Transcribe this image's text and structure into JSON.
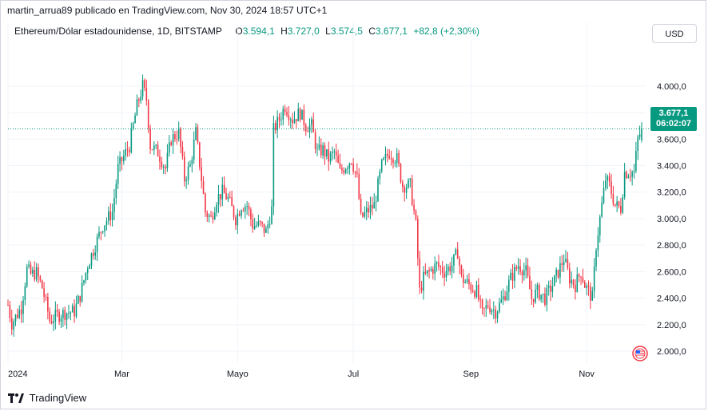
{
  "caption": "martin_arrua89 publicado en TradingView.com, Nov 30, 2024 18:57 UTC+1",
  "legend": {
    "symbol": "Ethereum/Dólar estadounidense, 1D, BITSTAMP",
    "o_label": "O",
    "o_value": "3.594,1",
    "h_label": "H",
    "h_value": "3.727,0",
    "l_label": "L",
    "l_value": "3.574,5",
    "c_label": "C",
    "c_value": "3.677,1",
    "change": "+82,8 (+2,30%)"
  },
  "currency_button": "USD",
  "price_tag": {
    "price": "3.677,1",
    "countdown": "06:02:07"
  },
  "brand": "TradingView",
  "colors": {
    "up": "#089981",
    "down": "#f23645",
    "grid": "#f0f3fa",
    "text": "#131722"
  },
  "icons": {
    "logo": "tradingview-logo-icon",
    "flag": "us-flag-icon"
  },
  "chart_data": {
    "type": "candlestick",
    "title": "Ethereum/Dólar estadounidense, 1D, BITSTAMP",
    "y_ticks": [
      "4.000,0",
      "3.800,0",
      "3.600,0",
      "3.400,0",
      "3.200,0",
      "3.000,0",
      "2.800,0",
      "2.600,0",
      "2.400,0",
      "2.200,0",
      "2.000,0"
    ],
    "y_tick_values": [
      4000,
      3800,
      3600,
      3400,
      3200,
      3000,
      2800,
      2600,
      2400,
      2200,
      2000
    ],
    "ylim": [
      1910,
      4300
    ],
    "x_ticks": [
      "2024",
      "Mar",
      "Mayo",
      "Jul",
      "Sep",
      "Nov"
    ],
    "x_tick_dates": [
      "2024-01-01",
      "2024-03-01",
      "2024-05-01",
      "2024-07-01",
      "2024-09-01",
      "2024-11-01"
    ],
    "xlim": [
      "2024-01-01",
      "2024-11-30"
    ],
    "last_price": 3677.1,
    "last_candle": {
      "date": "2024-11-30",
      "open": 3594.1,
      "high": 3727.0,
      "low": 3574.5,
      "close": 3677.1
    },
    "close_path": [
      [
        "2024-01-01",
        2350
      ],
      [
        "2024-01-03",
        2210
      ],
      [
        "2024-01-08",
        2330
      ],
      [
        "2024-01-11",
        2620
      ],
      [
        "2024-01-13",
        2580
      ],
      [
        "2024-01-16",
        2590
      ],
      [
        "2024-01-19",
        2480
      ],
      [
        "2024-01-22",
        2300
      ],
      [
        "2024-01-23",
        2230
      ],
      [
        "2024-01-27",
        2270
      ],
      [
        "2024-01-31",
        2290
      ],
      [
        "2024-02-05",
        2300
      ],
      [
        "2024-02-08",
        2420
      ],
      [
        "2024-02-12",
        2650
      ],
      [
        "2024-02-16",
        2800
      ],
      [
        "2024-02-20",
        2950
      ],
      [
        "2024-02-25",
        3050
      ],
      [
        "2024-02-28",
        3380
      ],
      [
        "2024-03-01",
        3440
      ],
      [
        "2024-03-05",
        3550
      ],
      [
        "2024-03-09",
        3850
      ],
      [
        "2024-03-12",
        4000
      ],
      [
        "2024-03-14",
        3900
      ],
      [
        "2024-03-16",
        3550
      ],
      [
        "2024-03-20",
        3500
      ],
      [
        "2024-03-24",
        3380
      ],
      [
        "2024-03-27",
        3600
      ],
      [
        "2024-03-31",
        3650
      ],
      [
        "2024-04-03",
        3300
      ],
      [
        "2024-04-06",
        3400
      ],
      [
        "2024-04-09",
        3650
      ],
      [
        "2024-04-12",
        3300
      ],
      [
        "2024-04-14",
        3050
      ],
      [
        "2024-04-17",
        3000
      ],
      [
        "2024-04-20",
        3150
      ],
      [
        "2024-04-23",
        3200
      ],
      [
        "2024-04-26",
        3150
      ],
      [
        "2024-04-30",
        3000
      ],
      [
        "2024-05-03",
        3100
      ],
      [
        "2024-05-06",
        3100
      ],
      [
        "2024-05-09",
        2950
      ],
      [
        "2024-05-13",
        2950
      ],
      [
        "2024-05-16",
        2900
      ],
      [
        "2024-05-19",
        3070
      ],
      [
        "2024-05-20",
        3670
      ],
      [
        "2024-05-23",
        3750
      ],
      [
        "2024-05-26",
        3850
      ],
      [
        "2024-05-30",
        3750
      ],
      [
        "2024-06-03",
        3800
      ],
      [
        "2024-06-06",
        3700
      ],
      [
        "2024-06-09",
        3700
      ],
      [
        "2024-06-12",
        3500
      ],
      [
        "2024-06-15",
        3520
      ],
      [
        "2024-06-18",
        3450
      ],
      [
        "2024-06-21",
        3500
      ],
      [
        "2024-06-24",
        3350
      ],
      [
        "2024-06-27",
        3400
      ],
      [
        "2024-06-30",
        3450
      ],
      [
        "2024-07-03",
        3300
      ],
      [
        "2024-07-05",
        3000
      ],
      [
        "2024-07-08",
        3050
      ],
      [
        "2024-07-12",
        3100
      ],
      [
        "2024-07-16",
        3400
      ],
      [
        "2024-07-20",
        3500
      ],
      [
        "2024-07-24",
        3450
      ],
      [
        "2024-07-27",
        3250
      ],
      [
        "2024-07-31",
        3250
      ],
      [
        "2024-08-03",
        2950
      ],
      [
        "2024-08-05",
        2450
      ],
      [
        "2024-08-07",
        2550
      ],
      [
        "2024-08-10",
        2600
      ],
      [
        "2024-08-14",
        2650
      ],
      [
        "2024-08-18",
        2600
      ],
      [
        "2024-08-22",
        2650
      ],
      [
        "2024-08-25",
        2750
      ],
      [
        "2024-08-27",
        2550
      ],
      [
        "2024-08-31",
        2500
      ],
      [
        "2024-09-04",
        2450
      ],
      [
        "2024-09-07",
        2280
      ],
      [
        "2024-09-10",
        2350
      ],
      [
        "2024-09-14",
        2300
      ],
      [
        "2024-09-18",
        2400
      ],
      [
        "2024-09-22",
        2550
      ],
      [
        "2024-09-26",
        2650
      ],
      [
        "2024-09-30",
        2600
      ],
      [
        "2024-10-03",
        2400
      ],
      [
        "2024-10-06",
        2450
      ],
      [
        "2024-10-10",
        2400
      ],
      [
        "2024-10-14",
        2500
      ],
      [
        "2024-10-17",
        2600
      ],
      [
        "2024-10-20",
        2700
      ],
      [
        "2024-10-23",
        2550
      ],
      [
        "2024-10-26",
        2500
      ],
      [
        "2024-10-29",
        2600
      ],
      [
        "2024-10-31",
        2500
      ],
      [
        "2024-11-04",
        2400
      ],
      [
        "2024-11-06",
        2800
      ],
      [
        "2024-11-09",
        3100
      ],
      [
        "2024-11-11",
        3300
      ],
      [
        "2024-11-13",
        3250
      ],
      [
        "2024-11-16",
        3100
      ],
      [
        "2024-11-19",
        3080
      ],
      [
        "2024-11-21",
        3350
      ],
      [
        "2024-11-24",
        3350
      ],
      [
        "2024-11-26",
        3350
      ],
      [
        "2024-11-28",
        3600
      ],
      [
        "2024-11-30",
        3677
      ]
    ]
  }
}
